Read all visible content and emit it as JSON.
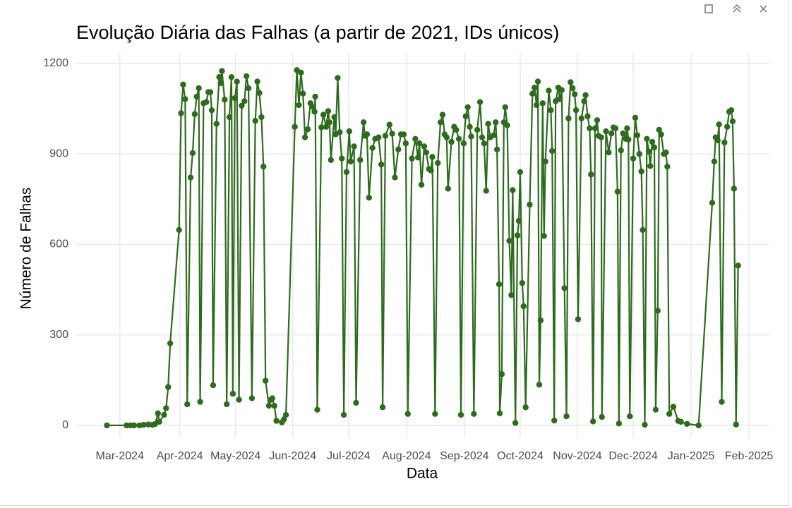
{
  "chart_data": {
    "type": "line",
    "title": "Evolução Diária das Falhas (a partir de 2021, IDs únicos)",
    "x_label": "Data",
    "y_label": "Número de Falhas",
    "color": "#2e6b1e",
    "markers": true,
    "grid": true,
    "xlim": [
      2024.097,
      2025.115
    ],
    "ylim": [
      -40,
      1235
    ],
    "xticks": [
      {
        "value": 2024.161,
        "label": "Mar-2024"
      },
      {
        "value": 2024.249,
        "label": "Apr-2024"
      },
      {
        "value": 2024.331,
        "label": "May-2024"
      },
      {
        "value": 2024.415,
        "label": "Jun-2024"
      },
      {
        "value": 2024.497,
        "label": "Jul-2024"
      },
      {
        "value": 2024.582,
        "label": "Aug-2024"
      },
      {
        "value": 2024.667,
        "label": "Sep-2024"
      },
      {
        "value": 2024.749,
        "label": "Oct-2024"
      },
      {
        "value": 2024.833,
        "label": "Nov-2024"
      },
      {
        "value": 2024.915,
        "label": "Dec-2024"
      },
      {
        "value": 2025.0,
        "label": "Jan-2025"
      },
      {
        "value": 2025.085,
        "label": "Feb-2025"
      }
    ],
    "yticks": [
      0,
      300,
      600,
      900,
      1200
    ],
    "x": [
      2024.142,
      2024.171,
      2024.177,
      2024.182,
      2024.19,
      2024.196,
      2024.203,
      2024.209,
      2024.213,
      2024.217,
      2024.219,
      2024.226,
      2024.229,
      2024.232,
      2024.235,
      2024.248,
      2024.251,
      2024.254,
      2024.257,
      2024.26,
      2024.265,
      2024.268,
      2024.271,
      2024.274,
      2024.277,
      2024.279,
      2024.284,
      2024.288,
      2024.291,
      2024.294,
      2024.296,
      2024.298,
      2024.303,
      2024.307,
      2024.309,
      2024.311,
      2024.315,
      2024.318,
      2024.322,
      2024.325,
      2024.327,
      2024.33,
      2024.333,
      2024.336,
      2024.34,
      2024.344,
      2024.347,
      2024.35,
      2024.355,
      2024.36,
      2024.363,
      2024.366,
      2024.369,
      2024.372,
      2024.375,
      2024.38,
      2024.383,
      2024.385,
      2024.388,
      2024.391,
      2024.399,
      2024.402,
      2024.405,
      2024.418,
      2024.421,
      2024.424,
      2024.427,
      2024.43,
      2024.433,
      2024.437,
      2024.441,
      2024.445,
      2024.447,
      2024.448,
      2024.451,
      2024.457,
      2024.46,
      2024.464,
      2024.467,
      2024.469,
      2024.471,
      2024.476,
      2024.478,
      2024.481,
      2024.484,
      2024.487,
      2024.49,
      2024.494,
      2024.498,
      2024.5,
      2024.505,
      2024.508,
      2024.514,
      2024.519,
      2024.521,
      2024.524,
      2024.527,
      2024.532,
      2024.536,
      2024.541,
      2024.545,
      2024.547,
      2024.551,
      2024.557,
      2024.561,
      2024.565,
      2024.57,
      2024.574,
      2024.578,
      2024.581,
      2024.584,
      2024.59,
      2024.595,
      2024.599,
      2024.601,
      2024.604,
      2024.608,
      2024.611,
      2024.615,
      2024.618,
      2024.62,
      2024.624,
      2024.628,
      2024.632,
      2024.635,
      2024.638,
      2024.641,
      2024.643,
      2024.648,
      2024.652,
      2024.655,
      2024.659,
      2024.662,
      2024.666,
      2024.669,
      2024.672,
      2024.675,
      2024.677,
      2024.681,
      2024.686,
      2024.69,
      2024.693,
      2024.696,
      2024.699,
      2024.702,
      2024.705,
      2024.71,
      2024.713,
      2024.715,
      2024.718,
      2024.719,
      2024.722,
      2024.725,
      2024.727,
      2024.73,
      2024.733,
      2024.736,
      2024.738,
      2024.742,
      2024.745,
      2024.747,
      2024.749,
      2024.752,
      2024.754,
      2024.757,
      2024.763,
      2024.767,
      2024.77,
      2024.773,
      2024.775,
      2024.777,
      2024.779,
      2024.782,
      2024.784,
      2024.786,
      2024.791,
      2024.794,
      2024.796,
      2024.799,
      2024.801,
      2024.805,
      2024.807,
      2024.81,
      2024.814,
      2024.817,
      2024.82,
      2024.823,
      2024.826,
      2024.829,
      2024.831,
      2024.834,
      2024.839,
      2024.843,
      2024.845,
      2024.848,
      2024.851,
      2024.853,
      2024.856,
      2024.859,
      2024.862,
      2024.864,
      2024.868,
      2024.869,
      2024.875,
      2024.879,
      2024.883,
      2024.886,
      2024.889,
      2024.892,
      2024.894,
      2024.897,
      2024.9,
      2024.904,
      2024.906,
      2024.908,
      2024.91,
      2024.915,
      2024.918,
      2024.921,
      2024.924,
      2024.927,
      2024.929,
      2024.932,
      2024.935,
      2024.938,
      2024.94,
      2024.943,
      2024.946,
      2024.948,
      2024.951,
      2024.953,
      2024.956,
      2024.96,
      2024.963,
      2024.965,
      2024.968,
      2024.974,
      2024.981,
      2024.985,
      2024.994,
      2025.011,
      2025.031,
      2025.034,
      2025.036,
      2025.039,
      2025.041,
      2025.045,
      2025.049,
      2025.053,
      2025.056,
      2025.059,
      2025.061,
      2025.063,
      2025.066,
      2025.069
    ],
    "values": [
      0,
      0,
      0,
      0,
      0,
      2,
      3,
      2,
      5,
      40,
      12,
      35,
      57,
      127,
      272,
      648,
      1035,
      1130,
      1082,
      70,
      822,
      903,
      1032,
      1090,
      1118,
      78,
      1068,
      1072,
      1105,
      1105,
      1045,
      133,
      1000,
      1155,
      1135,
      1175,
      1080,
      70,
      1022,
      1155,
      105,
      1085,
      1140,
      85,
      1060,
      1075,
      1158,
      1118,
      90,
      1010,
      1140,
      1102,
      1022,
      858,
      148,
      65,
      85,
      90,
      65,
      15,
      10,
      20,
      35,
      990,
      1178,
      1062,
      1170,
      1100,
      955,
      982,
      1068,
      1055,
      1040,
      1090,
      52,
      988,
      1030,
      990,
      1042,
      1005,
      880,
      1022,
      965,
      1152,
      972,
      885,
      35,
      840,
      975,
      875,
      925,
      75,
      880,
      1005,
      960,
      965,
      755,
      920,
      950,
      955,
      865,
      60,
      960,
      997,
      967,
      822,
      915,
      965,
      965,
      935,
      38,
      885,
      950,
      888,
      935,
      798,
      925,
      905,
      850,
      845,
      890,
      38,
      870,
      1005,
      1030,
      965,
      955,
      785,
      940,
      990,
      980,
      950,
      35,
      935,
      1025,
      1055,
      990,
      958,
      38,
      980,
      1072,
      955,
      935,
      778,
      1000,
      955,
      962,
      1005,
      915,
      468,
      40,
      170,
      1005,
      1055,
      995,
      612,
      432,
      780,
      8,
      630,
      678,
      840,
      472,
      395,
      60,
      732,
      1100,
      1120,
      1062,
      1140,
      135,
      348,
      1068,
      628,
      875,
      1110,
      1045,
      910,
      16,
      1075,
      1120,
      1082,
      1112,
      455,
      30,
      1018,
      1138,
      1118,
      1098,
      1045,
      352,
      1018,
      1075,
      1095,
      1025,
      985,
      832,
      13,
      985,
      1012,
      960,
      955,
      28,
      975,
      905,
      968,
      988,
      985,
      775,
      6,
      912,
      968,
      950,
      985,
      948,
      30,
      885,
      1020,
      962,
      900,
      842,
      648,
      2,
      950,
      908,
      860,
      940,
      922,
      52,
      380,
      980,
      965,
      900,
      905,
      858,
      38,
      62,
      15,
      12,
      5,
      0,
      738,
      875,
      955,
      945,
      998,
      78,
      938,
      990,
      1040,
      1045,
      1008,
      785,
      3,
      530
    ]
  }
}
